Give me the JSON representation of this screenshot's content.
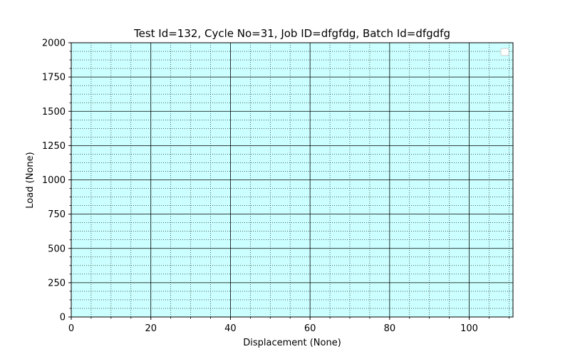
{
  "chart_data": {
    "type": "line",
    "title": "Test Id=132, Cycle No=31, Job ID=dfgfdg, Batch Id=dfgdfg",
    "xlabel": "Displacement (None)",
    "ylabel": "Load (None)",
    "xlim": [
      0,
      111
    ],
    "ylim": [
      0,
      2000
    ],
    "x_ticks": [
      0,
      20,
      40,
      60,
      80,
      100
    ],
    "y_ticks": [
      0,
      250,
      500,
      750,
      1000,
      1250,
      1500,
      1750,
      2000
    ],
    "x_minor_step": 5,
    "y_minor_step": 62.5,
    "grid": {
      "major": true,
      "minor": true
    },
    "plot_background": "#ccffff",
    "legend": {
      "placement": "top-right",
      "entries": []
    },
    "series": []
  }
}
